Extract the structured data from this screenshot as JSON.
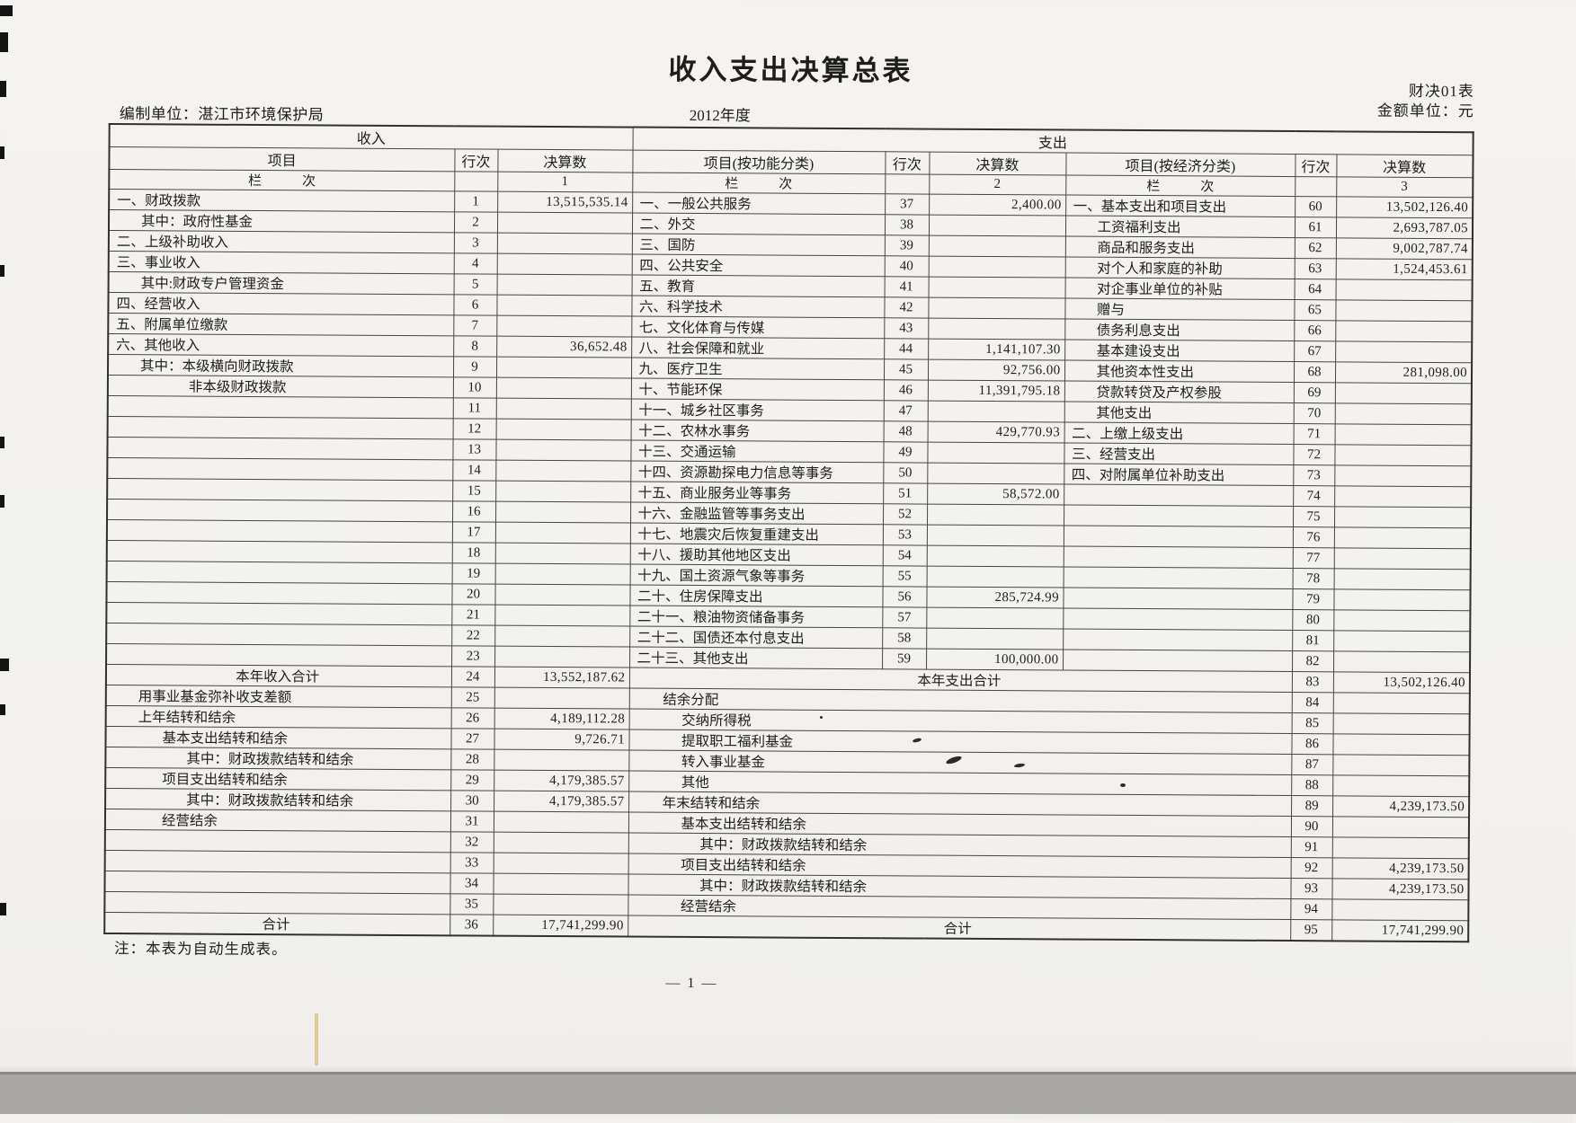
{
  "page": {
    "title": "收入支出决算总表",
    "form_code": "财决01表",
    "unit_label": "金额单位：元",
    "org_label": "编制单位：湛江市环境保护局",
    "year": "2012年度",
    "note": "注：本表为自动生成表。",
    "page_number": "— 1 —"
  },
  "table": {
    "section_income": "收入",
    "section_expenditure": "支出",
    "col_item": "项目",
    "col_rowno": "行次",
    "col_amount": "决算数",
    "col_item_func": "项目(按功能分类)",
    "col_item_econ": "项目(按经济分类)",
    "index_label": "栏　　　次",
    "index_1": "1",
    "index_2": "2",
    "index_3": "3",
    "income_rows": [
      {
        "label": "一、财政拨款",
        "no": "1",
        "value": "13,515,535.14",
        "indent": 0
      },
      {
        "label": "其中：政府性基金",
        "no": "2",
        "value": "",
        "indent": 1
      },
      {
        "label": "二、上级补助收入",
        "no": "3",
        "value": "",
        "indent": 0
      },
      {
        "label": "三、事业收入",
        "no": "4",
        "value": "",
        "indent": 0
      },
      {
        "label": "其中:财政专户管理资金",
        "no": "5",
        "value": "",
        "indent": 1
      },
      {
        "label": "四、经营收入",
        "no": "6",
        "value": "",
        "indent": 0
      },
      {
        "label": "五、附属单位缴款",
        "no": "7",
        "value": "",
        "indent": 0
      },
      {
        "label": "六、其他收入",
        "no": "8",
        "value": "36,652.48",
        "indent": 0
      },
      {
        "label": "其中：本级横向财政拨款",
        "no": "9",
        "value": "",
        "indent": 1
      },
      {
        "label": "非本级财政拨款",
        "no": "10",
        "value": "",
        "indent": 3
      },
      {
        "label": "",
        "no": "11",
        "value": "",
        "indent": 0
      },
      {
        "label": "",
        "no": "12",
        "value": "",
        "indent": 0
      },
      {
        "label": "",
        "no": "13",
        "value": "",
        "indent": 0
      },
      {
        "label": "",
        "no": "14",
        "value": "",
        "indent": 0
      },
      {
        "label": "",
        "no": "15",
        "value": "",
        "indent": 0
      },
      {
        "label": "",
        "no": "16",
        "value": "",
        "indent": 0
      },
      {
        "label": "",
        "no": "17",
        "value": "",
        "indent": 0
      },
      {
        "label": "",
        "no": "18",
        "value": "",
        "indent": 0
      },
      {
        "label": "",
        "no": "19",
        "value": "",
        "indent": 0
      },
      {
        "label": "",
        "no": "20",
        "value": "",
        "indent": 0
      },
      {
        "label": "",
        "no": "21",
        "value": "",
        "indent": 0
      },
      {
        "label": "",
        "no": "22",
        "value": "",
        "indent": 0
      },
      {
        "label": "",
        "no": "23",
        "value": "",
        "indent": 0
      },
      {
        "label": "本年收入合计",
        "no": "24",
        "value": "13,552,187.62",
        "center": true
      },
      {
        "label": "用事业基金弥补收支差额",
        "no": "25",
        "value": "",
        "indent": 1
      },
      {
        "label": "上年结转和结余",
        "no": "26",
        "value": "4,189,112.28",
        "indent": 1
      },
      {
        "label": "基本支出结转和结余",
        "no": "27",
        "value": "9,726.71",
        "indent": 2
      },
      {
        "label": "其中：财政拨款结转和结余",
        "no": "28",
        "value": "",
        "indent": 3
      },
      {
        "label": "项目支出结转和结余",
        "no": "29",
        "value": "4,179,385.57",
        "indent": 2
      },
      {
        "label": "其中：财政拨款结转和结余",
        "no": "30",
        "value": "4,179,385.57",
        "indent": 3
      },
      {
        "label": "经营结余",
        "no": "31",
        "value": "",
        "indent": 2
      },
      {
        "label": "",
        "no": "32",
        "value": "",
        "indent": 0
      },
      {
        "label": "",
        "no": "33",
        "value": "",
        "indent": 0
      },
      {
        "label": "",
        "no": "34",
        "value": "",
        "indent": 0
      },
      {
        "label": "",
        "no": "35",
        "value": "",
        "indent": 0
      },
      {
        "label": "合计",
        "no": "36",
        "value": "17,741,299.90",
        "center": true
      }
    ],
    "func_rows": [
      {
        "label": "一、一般公共服务",
        "no": "37",
        "value": "2,400.00"
      },
      {
        "label": "二、外交",
        "no": "38",
        "value": ""
      },
      {
        "label": "三、国防",
        "no": "39",
        "value": ""
      },
      {
        "label": "四、公共安全",
        "no": "40",
        "value": ""
      },
      {
        "label": "五、教育",
        "no": "41",
        "value": ""
      },
      {
        "label": "六、科学技术",
        "no": "42",
        "value": ""
      },
      {
        "label": "七、文化体育与传媒",
        "no": "43",
        "value": ""
      },
      {
        "label": "八、社会保障和就业",
        "no": "44",
        "value": "1,141,107.30"
      },
      {
        "label": "九、医疗卫生",
        "no": "45",
        "value": "92,756.00"
      },
      {
        "label": "十、节能环保",
        "no": "46",
        "value": "11,391,795.18"
      },
      {
        "label": "十一、城乡社区事务",
        "no": "47",
        "value": ""
      },
      {
        "label": "十二、农林水事务",
        "no": "48",
        "value": "429,770.93"
      },
      {
        "label": "十三、交通运输",
        "no": "49",
        "value": ""
      },
      {
        "label": "十四、资源勘探电力信息等事务",
        "no": "50",
        "value": ""
      },
      {
        "label": "十五、商业服务业等事务",
        "no": "51",
        "value": "58,572.00"
      },
      {
        "label": "十六、金融监管等事务支出",
        "no": "52",
        "value": ""
      },
      {
        "label": "十七、地震灾后恢复重建支出",
        "no": "53",
        "value": ""
      },
      {
        "label": "十八、援助其他地区支出",
        "no": "54",
        "value": ""
      },
      {
        "label": "十九、国土资源气象等事务",
        "no": "55",
        "value": ""
      },
      {
        "label": "二十、住房保障支出",
        "no": "56",
        "value": "285,724.99"
      },
      {
        "label": "二十一、粮油物资储备事务",
        "no": "57",
        "value": ""
      },
      {
        "label": "二十二、国债还本付息支出",
        "no": "58",
        "value": ""
      },
      {
        "label": "二十三、其他支出",
        "no": "59",
        "value": "100,000.00"
      }
    ],
    "econ_rows": [
      {
        "label": "一、基本支出和项目支出",
        "no": "60",
        "value": "13,502,126.40",
        "indent": 0
      },
      {
        "label": "工资福利支出",
        "no": "61",
        "value": "2,693,787.05",
        "indent": 1
      },
      {
        "label": "商品和服务支出",
        "no": "62",
        "value": "9,002,787.74",
        "indent": 1
      },
      {
        "label": "对个人和家庭的补助",
        "no": "63",
        "value": "1,524,453.61",
        "indent": 1
      },
      {
        "label": "对企事业单位的补贴",
        "no": "64",
        "value": "",
        "indent": 1
      },
      {
        "label": "赠与",
        "no": "65",
        "value": "",
        "indent": 1
      },
      {
        "label": "债务利息支出",
        "no": "66",
        "value": "",
        "indent": 1
      },
      {
        "label": "基本建设支出",
        "no": "67",
        "value": "",
        "indent": 1
      },
      {
        "label": "其他资本性支出",
        "no": "68",
        "value": "281,098.00",
        "indent": 1
      },
      {
        "label": "贷款转贷及产权参股",
        "no": "69",
        "value": "",
        "indent": 1
      },
      {
        "label": "其他支出",
        "no": "70",
        "value": "",
        "indent": 1
      },
      {
        "label": "二、上缴上级支出",
        "no": "71",
        "value": "",
        "indent": 0
      },
      {
        "label": "三、经营支出",
        "no": "72",
        "value": "",
        "indent": 0
      },
      {
        "label": "四、对附属单位补助支出",
        "no": "73",
        "value": "",
        "indent": 0
      },
      {
        "label": "",
        "no": "74",
        "value": "",
        "indent": 0
      },
      {
        "label": "",
        "no": "75",
        "value": "",
        "indent": 0
      },
      {
        "label": "",
        "no": "76",
        "value": "",
        "indent": 0
      },
      {
        "label": "",
        "no": "77",
        "value": "",
        "indent": 0
      },
      {
        "label": "",
        "no": "78",
        "value": "",
        "indent": 0
      },
      {
        "label": "",
        "no": "79",
        "value": "",
        "indent": 0
      },
      {
        "label": "",
        "no": "80",
        "value": "",
        "indent": 0
      },
      {
        "label": "",
        "no": "81",
        "value": "",
        "indent": 0
      },
      {
        "label": "",
        "no": "82",
        "value": "",
        "indent": 0
      }
    ],
    "bottom_rows": [
      {
        "label": "本年支出合计",
        "no": "83",
        "value": "13,502,126.40",
        "center": true
      },
      {
        "label": "结余分配",
        "no": "84",
        "value": "",
        "indent": 1
      },
      {
        "label": "交纳所得税",
        "no": "85",
        "value": "",
        "indent": 2
      },
      {
        "label": "提取职工福利基金",
        "no": "86",
        "value": "",
        "indent": 2
      },
      {
        "label": "转入事业基金",
        "no": "87",
        "value": "",
        "indent": 2
      },
      {
        "label": "其他",
        "no": "88",
        "value": "",
        "indent": 2
      },
      {
        "label": "年末结转和结余",
        "no": "89",
        "value": "4,239,173.50",
        "indent": 1
      },
      {
        "label": "基本支出结转和结余",
        "no": "90",
        "value": "",
        "indent": 2
      },
      {
        "label": "其中：财政拨款结转和结余",
        "no": "91",
        "value": "",
        "indent": 3
      },
      {
        "label": "项目支出结转和结余",
        "no": "92",
        "value": "4,239,173.50",
        "indent": 2
      },
      {
        "label": "其中：财政拨款结转和结余",
        "no": "93",
        "value": "4,239,173.50",
        "indent": 3
      },
      {
        "label": "经营结余",
        "no": "94",
        "value": "",
        "indent": 2
      },
      {
        "label": "合计",
        "no": "95",
        "value": "17,741,299.90",
        "center": true
      }
    ]
  }
}
